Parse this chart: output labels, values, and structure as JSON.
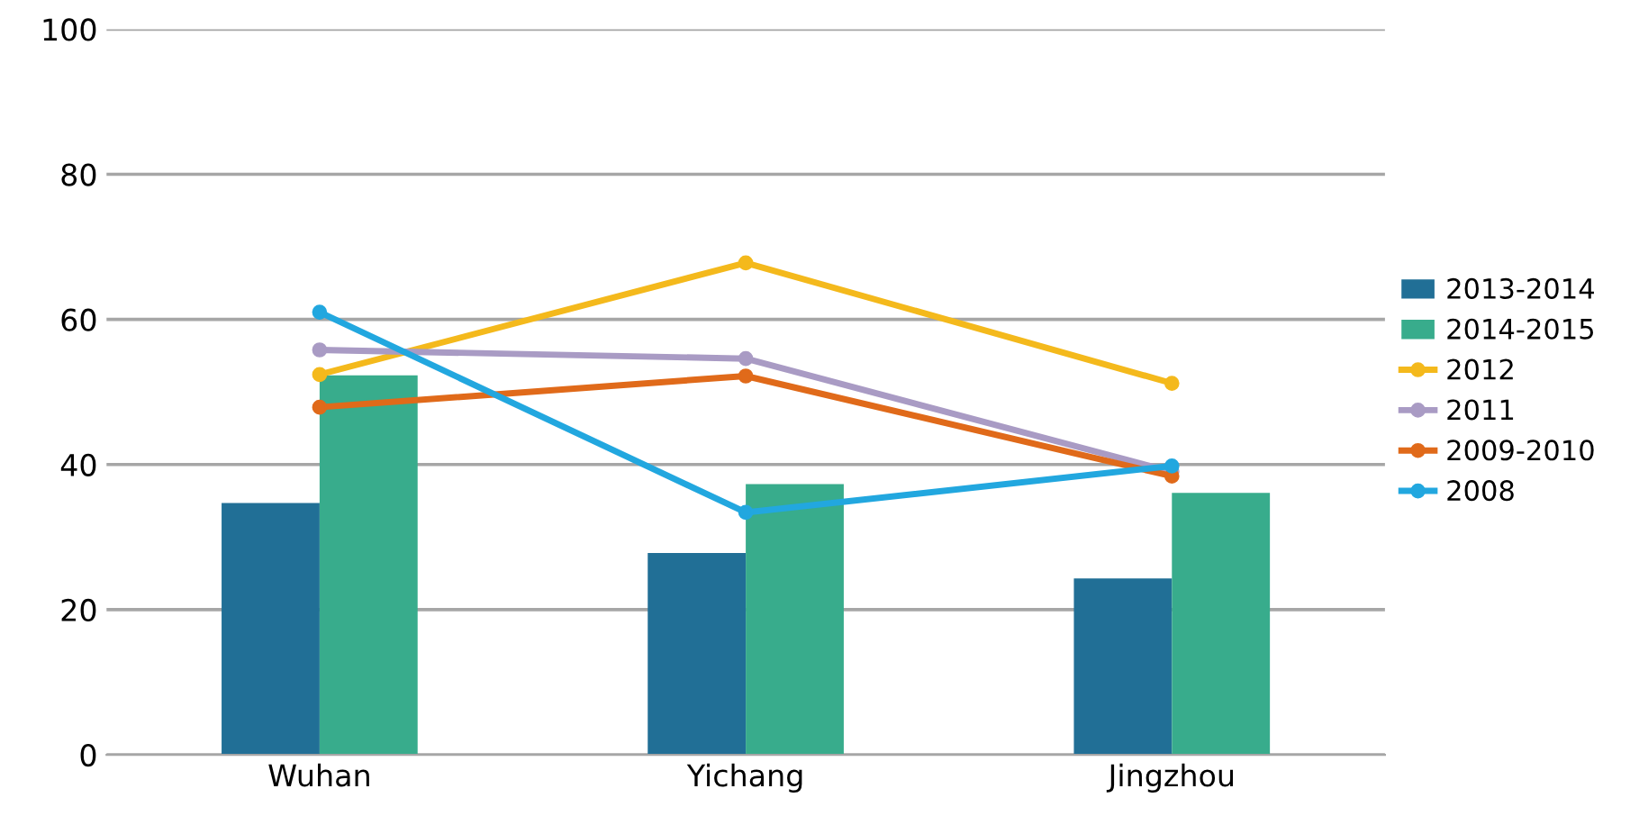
{
  "chart_data": {
    "type": "bar",
    "categories": [
      "Wuhan",
      "Yichang",
      "Jingzhou"
    ],
    "series": [
      {
        "name": "2013-2014",
        "color": "#216f96",
        "values": [
          34.7,
          27.8,
          24.3
        ]
      },
      {
        "name": "2014-2015",
        "color": "#38ac8c",
        "values": [
          52.3,
          37.3,
          36.1
        ]
      },
      {
        "name": "2012",
        "type": "line",
        "color": "#f4b91c",
        "values": [
          52.4,
          67.8,
          51.2
        ]
      },
      {
        "name": "2011",
        "type": "line",
        "color": "#a99bc4",
        "values": [
          55.8,
          54.6,
          39
        ]
      },
      {
        "name": "2009-2010",
        "type": "line",
        "color": "#e06a1a",
        "values": [
          47.9,
          52.2,
          38.4
        ]
      },
      {
        "name": "2008",
        "type": "line",
        "color": "#22a7df",
        "values": [
          61,
          33.4,
          39.8
        ]
      }
    ],
    "ylim": [
      0,
      100
    ],
    "yticks": [
      0,
      20,
      40,
      60,
      80,
      100
    ],
    "grid": "y",
    "legend": "right",
    "marker": "circle"
  }
}
